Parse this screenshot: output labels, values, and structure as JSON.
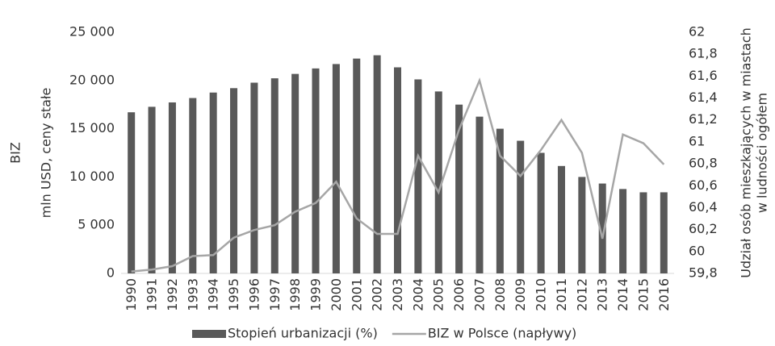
{
  "chart_data": {
    "type": "bar-line",
    "ylabel": [
      "BIZ",
      "mln USD, ceny stałe"
    ],
    "y2label": [
      "Udział osób mieszkających w miastach",
      "w ludności ogółem"
    ],
    "categories": [
      "1990",
      "1991",
      "1992",
      "1993",
      "1994",
      "1995",
      "1996",
      "1997",
      "1998",
      "1999",
      "2000",
      "2001",
      "2002",
      "2003",
      "2004",
      "2005",
      "2006",
      "2007",
      "2008",
      "2009",
      "2010",
      "2011",
      "2012",
      "2013",
      "2014",
      "2015",
      "2016"
    ],
    "series": [
      {
        "name": "Stopień urbanizacji (%)",
        "color": "#595959",
        "kind": "bar",
        "axis": "y2",
        "values": [
          61.27,
          61.32,
          61.36,
          61.4,
          61.45,
          61.49,
          61.54,
          61.58,
          61.62,
          61.67,
          61.71,
          61.76,
          61.79,
          61.68,
          61.57,
          61.46,
          61.34,
          61.23,
          61.12,
          61.01,
          60.9,
          60.78,
          60.68,
          60.62,
          60.57,
          60.54,
          60.54
        ]
      },
      {
        "name": "BIZ w Polsce (napływy)",
        "color": "#a6a6a6",
        "kind": "line",
        "axis": "y",
        "values": [
          200,
          400,
          750,
          1800,
          1900,
          3700,
          4500,
          5000,
          6400,
          7300,
          9500,
          5700,
          4100,
          4100,
          12200,
          8400,
          14900,
          20000,
          12200,
          10100,
          12800,
          15900,
          12500,
          3600,
          14400,
          13500,
          11300
        ]
      }
    ],
    "ylim": [
      0,
      25000
    ],
    "yticks": [
      0,
      {
        "value": 5000,
        "label": "5 000"
      },
      {
        "value": 10000,
        "label": "10 000"
      },
      {
        "value": 15000,
        "label": "15 000"
      },
      {
        "value": 20000,
        "label": "20 000"
      },
      {
        "value": 25000,
        "label": "25 000"
      }
    ],
    "y2lim": [
      59.8,
      62
    ],
    "y2ticks": [
      {
        "value": 59.8,
        "label": "59,8"
      },
      60,
      {
        "value": 60.2,
        "label": "60,2"
      },
      {
        "value": 60.4,
        "label": "60,4"
      },
      {
        "value": 60.6,
        "label": "60,6"
      },
      {
        "value": 60.8,
        "label": "60,8"
      },
      61,
      {
        "value": 61.2,
        "label": "61,2"
      },
      {
        "value": 61.4,
        "label": "61,4"
      },
      {
        "value": 61.6,
        "label": "61,6"
      },
      {
        "value": 61.8,
        "label": "61,8"
      },
      62
    ],
    "legend": "bottom"
  }
}
